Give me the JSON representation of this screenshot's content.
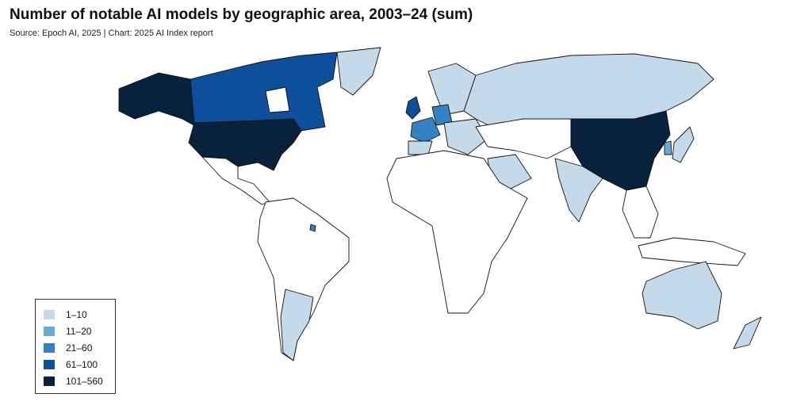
{
  "title": "Number of notable AI models by geographic area, 2003–24 (sum)",
  "source": "Source: Epoch AI, 2025 | Chart: 2025 AI Index report",
  "legend": [
    {
      "label": "1–10",
      "color": "#c4d9ea"
    },
    {
      "label": "11–20",
      "color": "#6aabd5"
    },
    {
      "label": "21–60",
      "color": "#3482c3"
    },
    {
      "label": "61–100",
      "color": "#0e4f9c"
    },
    {
      "label": "101–560",
      "color": "#08223e"
    }
  ]
}
